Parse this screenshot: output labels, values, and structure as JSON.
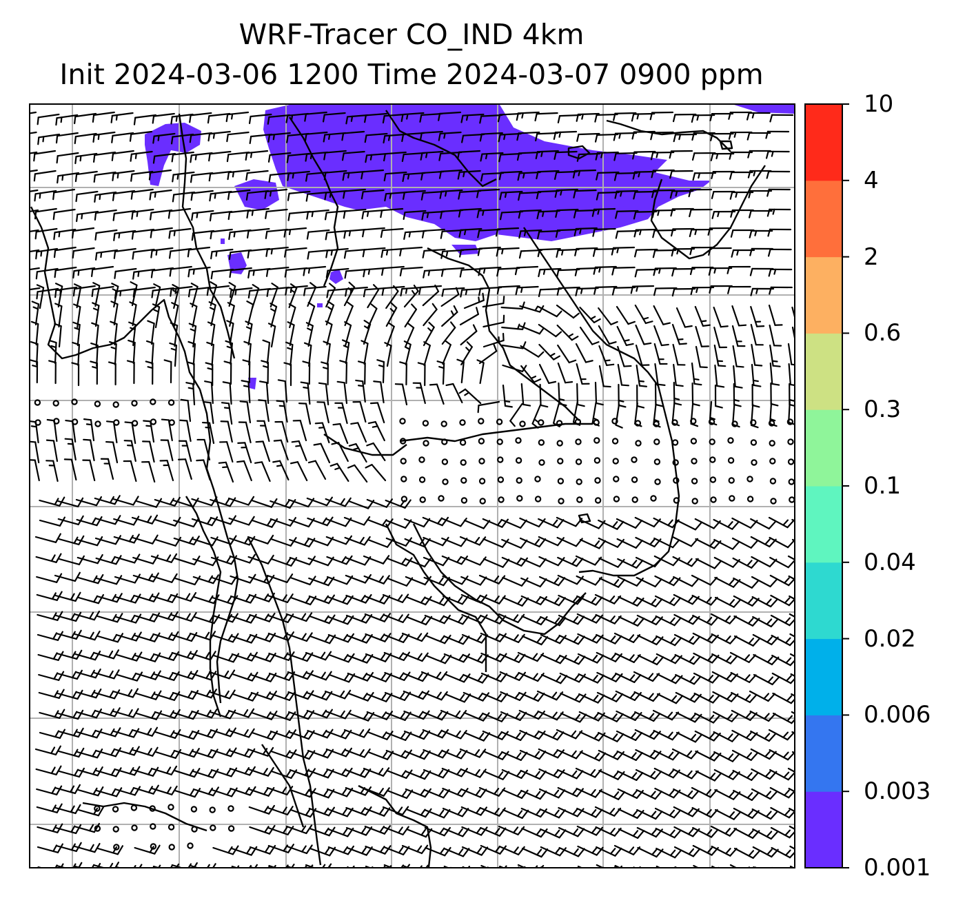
{
  "title": {
    "line1": "WRF-Tracer CO_IND 4km",
    "line2": "Init 2024-03-06 1200 Time 2024-03-07 0900 ppm"
  },
  "colorbar": {
    "levels": [
      "0.001",
      "0.003",
      "0.006",
      "0.02",
      "0.04",
      "0.1",
      "0.3",
      "0.6",
      "2",
      "4",
      "10"
    ],
    "colors": [
      "#6a2eff",
      "#3476f0",
      "#00b0ea",
      "#2ed9d0",
      "#5ff5bf",
      "#8ff59a",
      "#cde183",
      "#fdb061",
      "#ff6f3b",
      "#ff2a1a"
    ]
  },
  "map": {
    "plume_color": "#6a2eff",
    "gridline_color": "#b0b0b0",
    "coast_color": "#000000",
    "barb_color": "#000000"
  }
}
